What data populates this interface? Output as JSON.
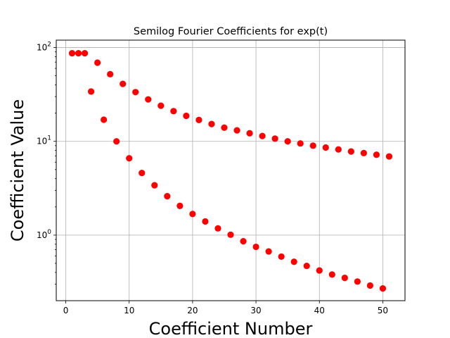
{
  "chart_data": {
    "type": "scatter",
    "title": "Semilog Fourier Coefficients for exp(t)",
    "xlabel": "Coefficient Number",
    "ylabel": "Coefficient Value",
    "x_scale": "linear",
    "y_scale": "log",
    "xlim": [
      -1.5,
      53.5
    ],
    "ylim": [
      0.2,
      120
    ],
    "grid": true,
    "x_ticks": [
      0,
      10,
      20,
      30,
      40,
      50
    ],
    "y_ticks": [
      {
        "value": 1,
        "base": "10",
        "exp": "0"
      },
      {
        "value": 10,
        "base": "10",
        "exp": "1"
      },
      {
        "value": 100,
        "base": "10",
        "exp": "2"
      }
    ],
    "marker_color": "#ff0000",
    "series": [
      {
        "x": [
          1,
          2,
          3,
          4,
          5,
          6,
          7,
          8,
          9,
          10,
          11,
          12,
          13,
          14,
          15,
          16,
          17,
          18,
          19,
          20,
          21,
          22,
          23,
          24,
          25,
          26,
          27,
          28,
          29,
          30,
          31,
          32,
          33,
          34,
          35,
          36,
          37,
          38,
          39,
          40,
          41,
          42,
          43,
          44,
          45,
          46,
          47,
          48,
          49,
          50,
          51
        ],
        "y": [
          87,
          87,
          87,
          34,
          69,
          17,
          52,
          10,
          41,
          6.6,
          33.5,
          4.6,
          28,
          3.4,
          24,
          2.6,
          21,
          2.05,
          18.7,
          1.68,
          16.9,
          1.4,
          15.3,
          1.18,
          14.0,
          1.01,
          13.1,
          0.86,
          12.2,
          0.75,
          11.4,
          0.67,
          10.7,
          0.59,
          10.0,
          0.52,
          9.5,
          0.47,
          9.0,
          0.42,
          8.6,
          0.38,
          8.2,
          0.35,
          7.8,
          0.32,
          7.5,
          0.29,
          7.2,
          0.27,
          6.9
        ]
      }
    ]
  }
}
